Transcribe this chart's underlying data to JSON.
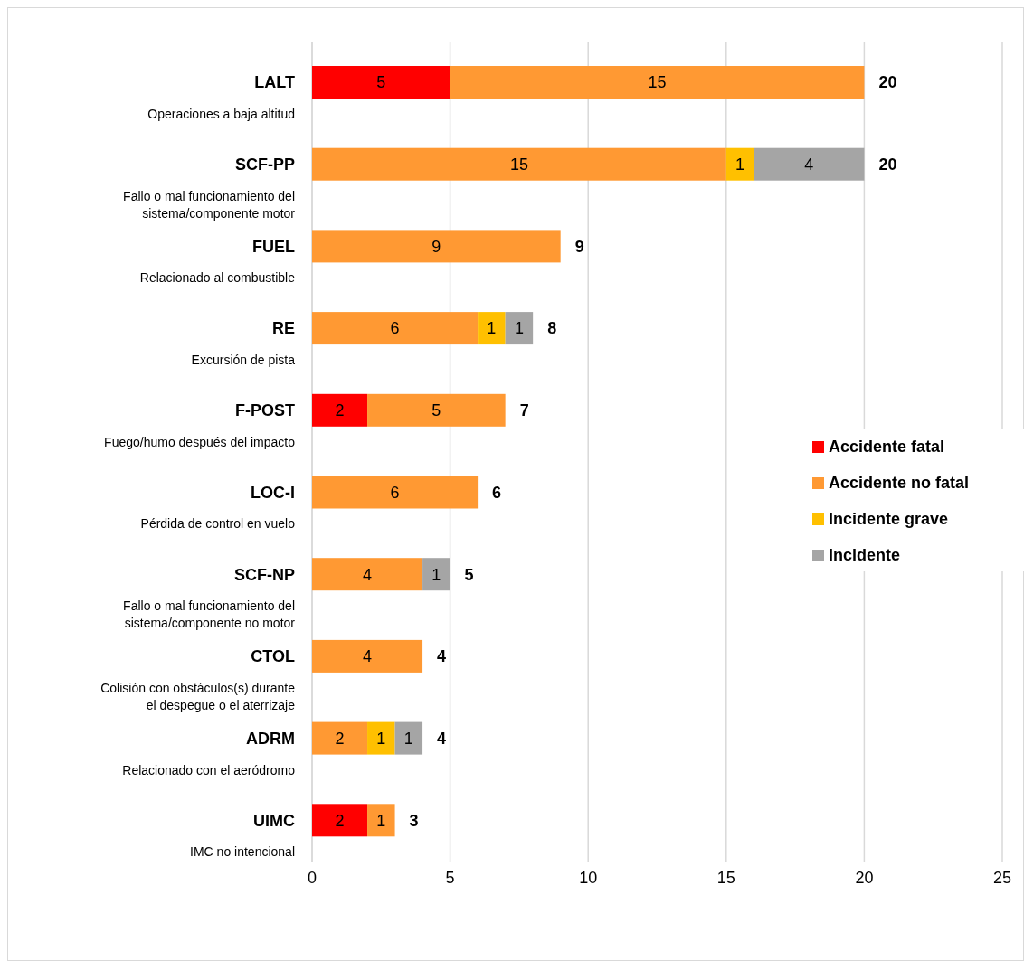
{
  "chart_data": {
    "type": "bar",
    "orientation": "horizontal",
    "stacked": true,
    "categories": [
      "LALT\nOperaciones a baja altitud",
      "SCF-PP\nFallo o mal funcionamiento del\nsistema/componente motor",
      "FUEL\nRelacionado al combustible",
      "RE\nExcursión de pista",
      "F-POST\nFuego/humo después del impacto",
      "LOC-I\nPérdida de control en vuelo",
      "SCF-NP\nFallo o mal funcionamiento del\nsistema/componente no motor",
      "CTOL\nColisión con obstáculos(s) durante\nel despegue o el aterrizaje",
      "ADRM\nRelacionado con el aeródromo",
      "UIMC\nIMC no intencional"
    ],
    "series": [
      {
        "name": "Accidente fatal",
        "color": "#ff0000",
        "values": [
          5,
          null,
          null,
          null,
          2,
          null,
          null,
          null,
          null,
          2
        ]
      },
      {
        "name": "Accidente no fatal",
        "color": "#ff9933",
        "values": [
          15,
          15,
          9,
          6,
          5,
          6,
          4,
          4,
          2,
          1
        ]
      },
      {
        "name": "Incidente grave",
        "color": "#ffc000",
        "values": [
          null,
          1,
          null,
          1,
          null,
          null,
          null,
          null,
          1,
          null
        ]
      },
      {
        "name": "Incidente",
        "color": "#a5a5a5",
        "values": [
          null,
          4,
          null,
          1,
          null,
          null,
          1,
          null,
          1,
          null
        ]
      }
    ],
    "data_labels": true,
    "totals": [
      "20",
      "20",
      "9",
      "8",
      "7",
      "6",
      "5",
      "4",
      "4",
      "3"
    ],
    "xlim": [
      0,
      25
    ],
    "xticks": [
      0,
      5,
      10,
      15,
      20,
      25
    ],
    "grid": "x",
    "legend": "right"
  }
}
